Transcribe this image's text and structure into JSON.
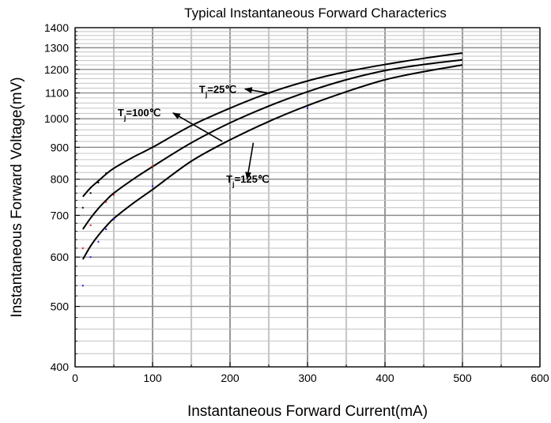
{
  "chart_data": {
    "type": "line",
    "title": "Typical Instantaneous Forward Characterics",
    "xlabel": "Instantaneous Forward Current(mA)",
    "ylabel": "Instantaneous Forward Voltage(mV)",
    "xlim": [
      0,
      600
    ],
    "ylim": [
      400,
      1400
    ],
    "yscale": "log",
    "grid": true,
    "x_ticks": [
      0,
      100,
      200,
      300,
      400,
      500,
      600
    ],
    "x_tick_labels": [
      "0",
      "100",
      "200",
      "300",
      "400",
      "500",
      "600"
    ],
    "y_ticks": [
      400,
      500,
      600,
      700,
      800,
      900,
      1000,
      1100,
      1200,
      1300,
      1400
    ],
    "y_tick_labels": [
      "400",
      "500",
      "600",
      "700",
      "800",
      "900",
      "1000",
      "1100",
      "1200",
      "1300",
      "1400"
    ],
    "x": [
      10,
      20,
      30,
      40,
      50,
      75,
      100,
      150,
      200,
      250,
      300,
      350,
      400,
      450,
      500
    ],
    "series": [
      {
        "label_main": "T",
        "label_sub": "j",
        "label_rest": "=25℃",
        "values": [
          750,
          775,
          795,
          815,
          833,
          868,
          900,
          975,
          1040,
          1100,
          1150,
          1190,
          1222,
          1250,
          1275
        ],
        "label_value": [
          160,
          1100
        ],
        "arrow_to": [
          260,
          1118
        ]
      },
      {
        "label_main": "T",
        "label_sub": "j",
        "label_rest": "=100℃",
        "values": [
          665,
          693,
          718,
          740,
          760,
          800,
          838,
          915,
          985,
          1048,
          1105,
          1155,
          1195,
          1222,
          1243
        ],
        "label_value": [
          55,
          1010
        ],
        "arrow_to": [
          190,
          920
        ]
      },
      {
        "label_main": "T",
        "label_sub": "j",
        "label_rest": "=125℃",
        "values": [
          595,
          625,
          650,
          672,
          692,
          732,
          770,
          855,
          925,
          990,
          1050,
          1105,
          1155,
          1190,
          1220
        ],
        "label_value": [
          195,
          790
        ],
        "arrow_to": [
          230,
          915
        ]
      }
    ],
    "scatter_points": [
      {
        "x": 10,
        "y": 720,
        "color": "#000000"
      },
      {
        "x": 20,
        "y": 760,
        "color": "#000000"
      },
      {
        "x": 30,
        "y": 790,
        "color": "#000000"
      },
      {
        "x": 40,
        "y": 818,
        "color": "#000000"
      },
      {
        "x": 10,
        "y": 620,
        "color": "#e02020"
      },
      {
        "x": 20,
        "y": 675,
        "color": "#e02020"
      },
      {
        "x": 40,
        "y": 735,
        "color": "#e02020"
      },
      {
        "x": 50,
        "y": 755,
        "color": "#e02020"
      },
      {
        "x": 100,
        "y": 840,
        "color": "#e02020"
      },
      {
        "x": 10,
        "y": 540,
        "color": "#2020e0"
      },
      {
        "x": 20,
        "y": 600,
        "color": "#2020e0"
      },
      {
        "x": 30,
        "y": 635,
        "color": "#2020e0"
      },
      {
        "x": 40,
        "y": 665,
        "color": "#2020e0"
      },
      {
        "x": 50,
        "y": 690,
        "color": "#2020e0"
      },
      {
        "x": 100,
        "y": 780,
        "color": "#2020e0"
      },
      {
        "x": 300,
        "y": 1040,
        "color": "#2020e0"
      }
    ],
    "colors": {
      "line": "#000000",
      "major_grid": "#8c8c8c",
      "minor_grid": "#c8c8c8",
      "background": "#ffffff"
    }
  }
}
